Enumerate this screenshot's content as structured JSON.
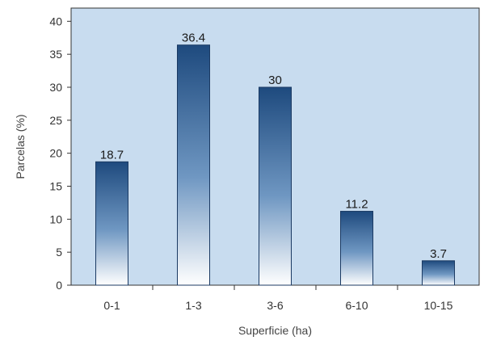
{
  "chart_data": {
    "type": "bar",
    "categories": [
      "0-1",
      "1-3",
      "3-6",
      "6-10",
      "10-15"
    ],
    "values": [
      18.7,
      36.4,
      30,
      11.2,
      3.7
    ],
    "data_labels": [
      "18.7",
      "36.4",
      "30",
      "11.2",
      "3.7"
    ],
    "xlabel": "Superficie (ha)",
    "ylabel": "Parcelas (%)",
    "ylim": [
      0,
      42
    ],
    "yticks": [
      "0",
      "5",
      "10",
      "15",
      "20",
      "25",
      "30",
      "35",
      "40"
    ],
    "grid": false,
    "colors": {
      "plot_background": "#c8dcef",
      "bar_top": "#1e4a7e",
      "bar_bottom": "#ffffff",
      "axis": "#333333"
    }
  }
}
